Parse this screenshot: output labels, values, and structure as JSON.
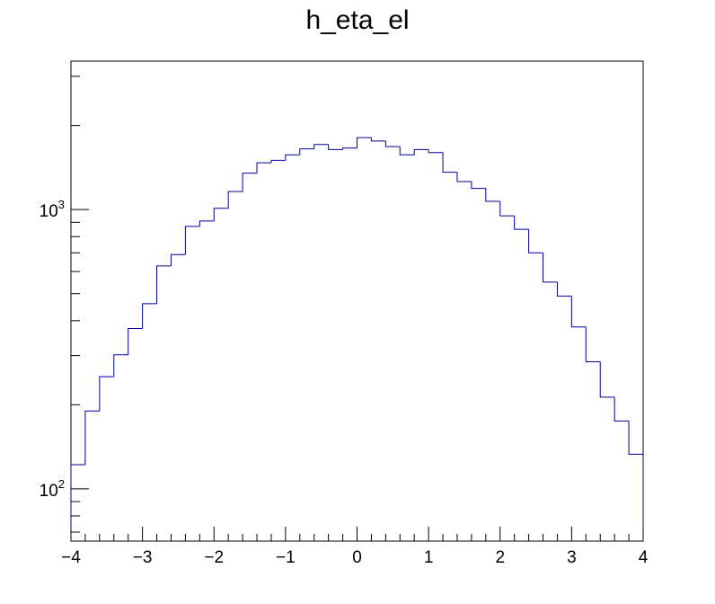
{
  "chart_data": {
    "type": "step",
    "title": "h_eta_el",
    "xlabel": "",
    "ylabel": "",
    "xlim": [
      -4,
      4
    ],
    "ylim": [
      65,
      3400
    ],
    "yscale": "log",
    "grid": false,
    "line_color": "#000099",
    "bin_width": 0.2,
    "bin_edges_start": -4,
    "x_tick_labels": [
      "−4",
      "−3",
      "−2",
      "−1",
      "0",
      "1",
      "2",
      "3",
      "4"
    ],
    "x_tick_values": [
      -4,
      -3,
      -2,
      -1,
      0,
      1,
      2,
      3,
      4
    ],
    "y_tick_labels": [
      {
        "base": "10",
        "exp": "2",
        "value": 100
      },
      {
        "base": "10",
        "exp": "3",
        "value": 1000
      }
    ],
    "values": [
      122,
      190,
      252,
      302,
      375,
      460,
      628,
      690,
      870,
      910,
      1010,
      1160,
      1350,
      1470,
      1500,
      1570,
      1650,
      1710,
      1640,
      1660,
      1810,
      1760,
      1680,
      1570,
      1640,
      1600,
      1360,
      1260,
      1190,
      1070,
      950,
      850,
      700,
      550,
      490,
      380,
      285,
      213,
      175,
      133
    ]
  }
}
